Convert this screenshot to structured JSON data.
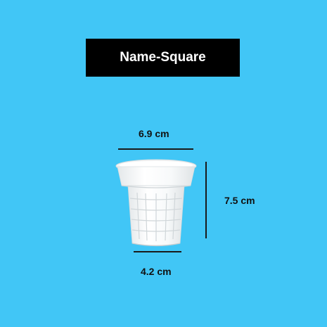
{
  "title": "Name-Square",
  "dimensions": {
    "top_width": "6.9 cm",
    "bottom_width": "4.2 cm",
    "height": "7.5 cm"
  },
  "colors": {
    "background": "#41c6f6",
    "title_box": "#000000",
    "title_text": "#ffffff",
    "cup": "#ffffff"
  },
  "image": {
    "subject": "cup-icon"
  }
}
